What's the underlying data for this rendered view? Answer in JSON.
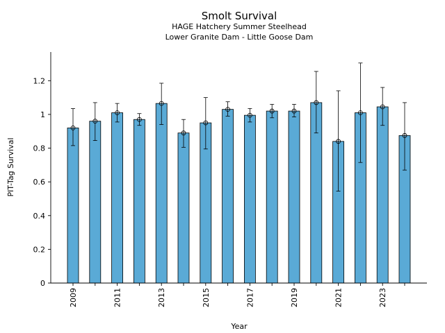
{
  "chart_data": {
    "type": "bar",
    "title": "Smolt Survival",
    "subtitle_lines": [
      "HAGE Hatchery Summer Steelhead",
      "Lower Granite Dam - Little Goose Dam"
    ],
    "xlabel": "Year",
    "ylabel": "PIT-Tag Survival",
    "ylim": [
      0,
      1.37
    ],
    "yticks": [
      0,
      0.2,
      0.4,
      0.6,
      0.8,
      1,
      1.2
    ],
    "ytick_labels": [
      "0",
      "0.2",
      "0.4",
      "0.6",
      "0.8",
      "1",
      "1.2"
    ],
    "categories": [
      2009,
      2010,
      2011,
      2012,
      2013,
      2014,
      2015,
      2016,
      2017,
      2018,
      2019,
      2020,
      2021,
      2022,
      2023,
      2024
    ],
    "xtick_labels": [
      "2009",
      "2011",
      "2013",
      "2015",
      "2017",
      "2019",
      "2021",
      "2023"
    ],
    "values": [
      0.92,
      0.96,
      1.01,
      0.97,
      1.065,
      0.89,
      0.95,
      1.03,
      0.995,
      1.02,
      1.02,
      1.07,
      0.84,
      1.01,
      1.045,
      0.875
    ],
    "error_low": [
      0.815,
      0.845,
      0.955,
      0.935,
      0.94,
      0.805,
      0.795,
      0.99,
      0.955,
      0.98,
      0.985,
      0.89,
      0.545,
      0.715,
      0.935,
      0.67
    ],
    "error_high": [
      1.035,
      1.07,
      1.065,
      1.005,
      1.185,
      0.97,
      1.1,
      1.075,
      1.035,
      1.06,
      1.06,
      1.255,
      1.14,
      1.305,
      1.16,
      1.07
    ],
    "bar_color": "#5aaad6",
    "grid": false,
    "legend": "none"
  }
}
